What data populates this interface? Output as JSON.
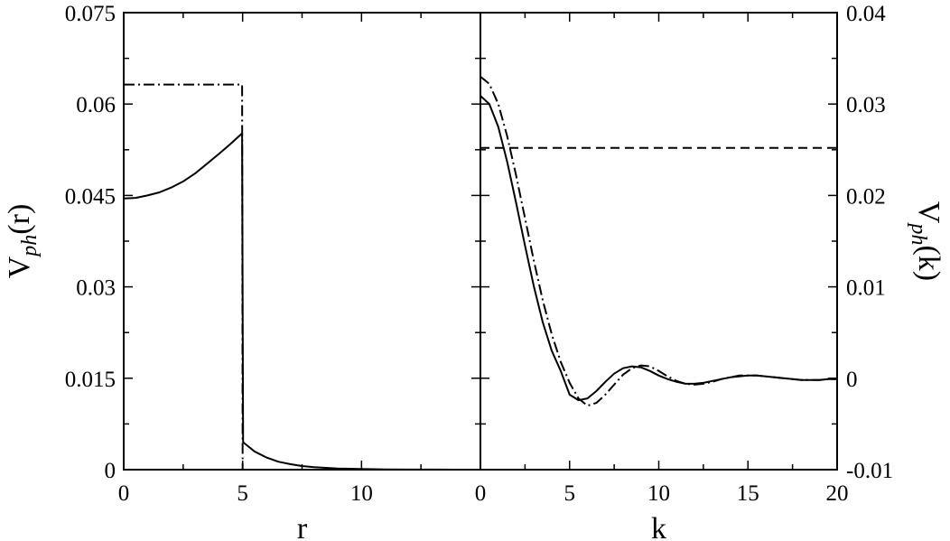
{
  "chart_data": [
    {
      "type": "line",
      "panel": "left",
      "xlabel": "r",
      "ylabel": "V",
      "ylabel_sub": "ph",
      "ylabel_arg": "(r)",
      "xlim": [
        0,
        15
      ],
      "ylim": [
        0,
        0.075
      ],
      "xticks": [
        0,
        5,
        10
      ],
      "xtick_labels": [
        "0",
        "5",
        "10"
      ],
      "yticks": [
        0,
        0.015,
        0.03,
        0.045,
        0.06,
        0.075
      ],
      "ytick_labels": [
        "0",
        "0.015",
        "0.03",
        "0.045",
        "0.06",
        "0.075"
      ],
      "series": [
        {
          "style": "solid",
          "x": [
            0,
            0.5,
            1,
            1.5,
            2,
            2.5,
            3,
            3.5,
            4,
            4.5,
            4.98,
            5.02,
            5.5,
            6,
            6.5,
            7,
            7.5,
            8,
            9,
            10,
            11,
            12,
            13,
            14,
            15
          ],
          "y": [
            0.0445,
            0.0446,
            0.045,
            0.0455,
            0.0463,
            0.0473,
            0.0486,
            0.0502,
            0.0518,
            0.0535,
            0.0552,
            0.0045,
            0.003,
            0.002,
            0.0013,
            0.0009,
            0.0006,
            0.0004,
            0.0002,
            0.0001,
            5e-05,
            2e-05,
            1e-05,
            0,
            0
          ]
        },
        {
          "style": "dashdot",
          "x": [
            0,
            4.98,
            5.0,
            15
          ],
          "y": [
            0.0632,
            0.0632,
            0,
            0
          ]
        }
      ]
    },
    {
      "type": "line",
      "panel": "right",
      "xlabel": "k",
      "ylabel": "V",
      "ylabel_sub": "ph",
      "ylabel_arg": "(k)",
      "xlim": [
        0,
        20
      ],
      "ylim": [
        -0.01,
        0.04
      ],
      "xticks": [
        0,
        5,
        10,
        15,
        20
      ],
      "xtick_labels": [
        "0",
        "5",
        "10",
        "15",
        "20"
      ],
      "yticks": [
        -0.01,
        0,
        0.01,
        0.02,
        0.03,
        0.04
      ],
      "ytick_labels": [
        "-0.01",
        "0",
        "0.01",
        "0.02",
        "0.03",
        "0.04"
      ],
      "series": [
        {
          "style": "solid",
          "x": [
            0,
            0.5,
            1,
            1.5,
            2,
            2.5,
            3,
            3.5,
            4,
            4.5,
            5,
            5.5,
            6,
            6.5,
            7,
            7.5,
            8,
            8.5,
            9,
            9.5,
            10,
            10.5,
            11,
            11.5,
            12,
            12.5,
            13,
            13.5,
            14,
            14.5,
            15,
            15.5,
            16,
            16.5,
            17,
            17.5,
            18,
            18.5,
            19,
            19.5,
            20
          ],
          "y": [
            0.0309,
            0.03,
            0.0275,
            0.0237,
            0.0192,
            0.0145,
            0.01,
            0.0061,
            0.003,
            0.0008,
            -0.0018,
            -0.0024,
            -0.0022,
            -0.0014,
            -0.0004,
            0.0005,
            0.0011,
            0.0013,
            0.0012,
            0.0008,
            0.0003,
            -0.0001,
            -0.0004,
            -0.0006,
            -0.0006,
            -0.0005,
            -0.0003,
            -0.0001,
            0.0001,
            0.0002,
            0.0003,
            0.0003,
            0.0002,
            0.0001,
            0.0,
            -0.0001,
            -0.0002,
            -0.0002,
            -0.0002,
            -0.0001,
            -0.0001
          ]
        },
        {
          "style": "dashdot",
          "x": [
            0,
            0.5,
            1,
            1.5,
            2,
            2.5,
            3,
            3.5,
            4,
            4.5,
            5,
            5.5,
            6,
            6.5,
            7,
            7.5,
            8,
            8.5,
            9,
            9.5,
            10,
            10.5,
            11,
            11.5,
            12,
            12.5,
            13,
            13.5,
            14,
            14.5,
            15,
            15.5,
            16,
            16.5,
            17,
            17.5,
            18,
            18.5,
            19,
            19.5,
            20
          ],
          "y": [
            0.033,
            0.0322,
            0.03,
            0.0265,
            0.0222,
            0.0175,
            0.0128,
            0.0085,
            0.0048,
            0.0018,
            -0.0005,
            -0.0022,
            -0.003,
            -0.0027,
            -0.0018,
            -0.0007,
            0.0004,
            0.0011,
            0.0014,
            0.0013,
            0.0008,
            0.0002,
            -0.0003,
            -0.0006,
            -0.0007,
            -0.0006,
            -0.0004,
            -0.0001,
            0.0001,
            0.0003,
            0.0003,
            0.0003,
            0.0002,
            0.0001,
            0.0,
            -0.0001,
            -0.0002,
            -0.0002,
            -0.0002,
            -0.0001,
            -0.0001
          ]
        },
        {
          "style": "dashed",
          "x": [
            0,
            20
          ],
          "y": [
            0.0252,
            0.0252
          ]
        }
      ]
    }
  ]
}
